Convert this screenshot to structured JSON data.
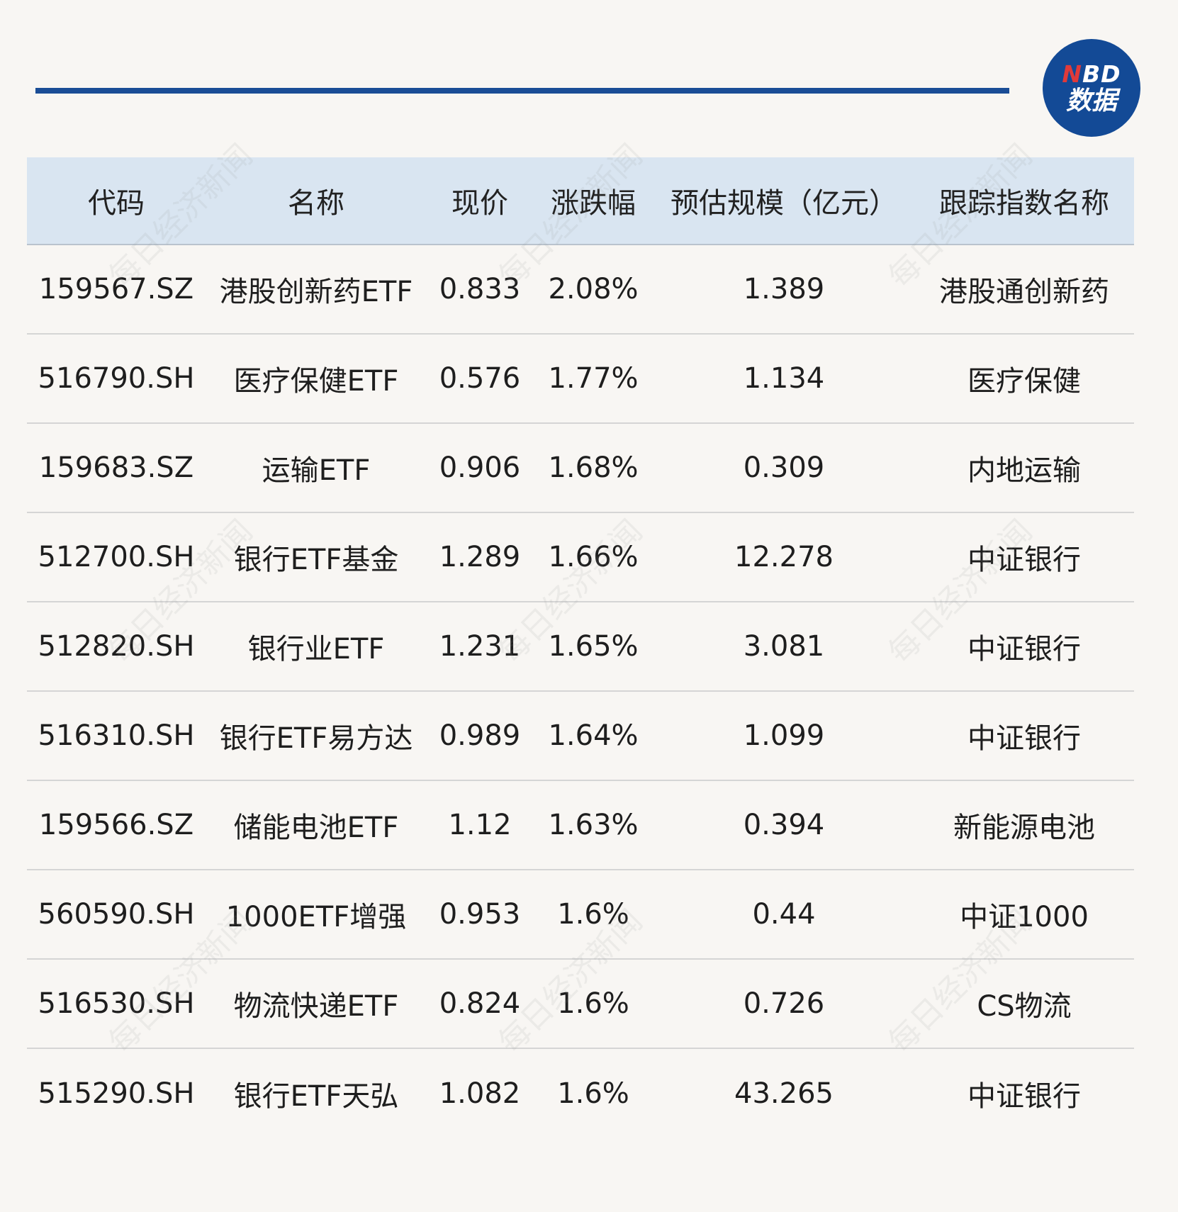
{
  "logo": {
    "line1_n": "N",
    "line1_rest": "BD",
    "line2": "数据"
  },
  "table": {
    "headers": [
      "代码",
      "名称",
      "现价",
      "涨跌幅",
      "预估规模（亿元）",
      "跟踪指数名称"
    ],
    "rows": [
      [
        "159567.SZ",
        "港股创新药ETF",
        "0.833",
        "2.08%",
        "1.389",
        "港股通创新药"
      ],
      [
        "516790.SH",
        "医疗保健ETF",
        "0.576",
        "1.77%",
        "1.134",
        "医疗保健"
      ],
      [
        "159683.SZ",
        "运输ETF",
        "0.906",
        "1.68%",
        "0.309",
        "内地运输"
      ],
      [
        "512700.SH",
        "银行ETF基金",
        "1.289",
        "1.66%",
        "12.278",
        "中证银行"
      ],
      [
        "512820.SH",
        "银行业ETF",
        "1.231",
        "1.65%",
        "3.081",
        "中证银行"
      ],
      [
        "516310.SH",
        "银行ETF易方达",
        "0.989",
        "1.64%",
        "1.099",
        "中证银行"
      ],
      [
        "159566.SZ",
        "储能电池ETF",
        "1.12",
        "1.63%",
        "0.394",
        "新能源电池"
      ],
      [
        "560590.SH",
        "1000ETF增强",
        "0.953",
        "1.6%",
        "0.44",
        "中证1000"
      ],
      [
        "516530.SH",
        "物流快递ETF",
        "0.824",
        "1.6%",
        "0.726",
        "CS物流"
      ],
      [
        "515290.SH",
        "银行ETF天弘",
        "1.082",
        "1.6%",
        "43.265",
        "中证银行"
      ]
    ]
  },
  "watermark_text": "每日经济新闻",
  "colors": {
    "background": "#f8f6f3",
    "accent_rule": "#1a4d96",
    "header_bg": "#d9e5f1",
    "logo_bg": "#134a96",
    "logo_red": "#e03a3a"
  }
}
